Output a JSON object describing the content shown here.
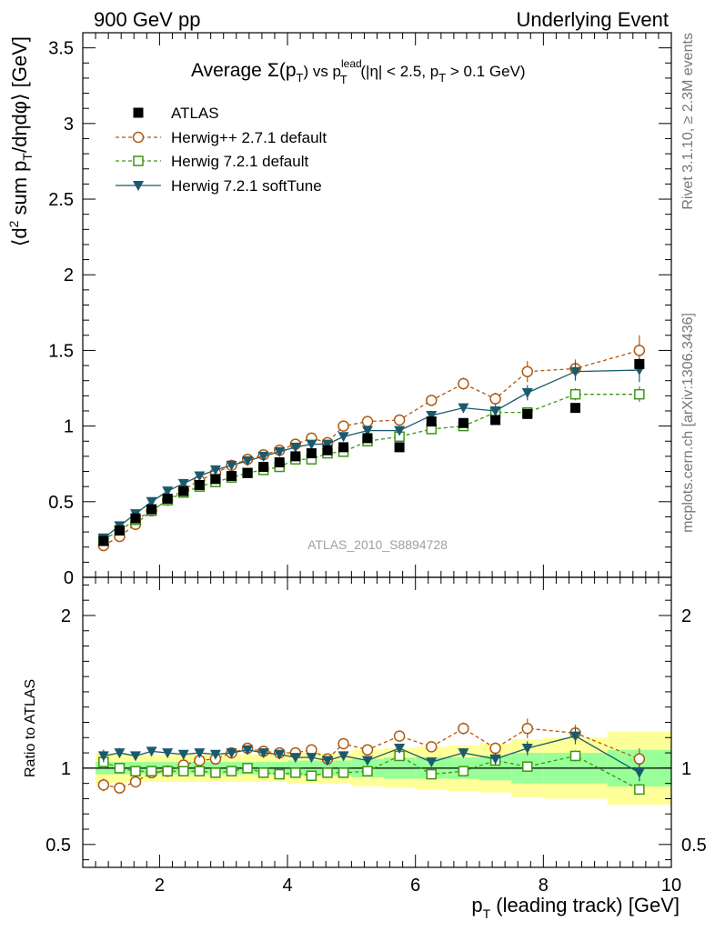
{
  "header": {
    "left": "900 GeV pp",
    "right": "Underlying Event"
  },
  "side_labels": {
    "rivet": "Rivet 3.1.10, ≥ 2.3M events",
    "mcplots": "mcplots.cern.ch [arXiv:1306.3436]"
  },
  "plot": {
    "title_prefix": "Average",
    "title_sigma": "Σ(p",
    "title_sub_T": "T",
    "title_mid": ") vs p",
    "title_sup": "lead",
    "title_sub2": "T",
    "title_cuts1": " (|η| < 2.5, p",
    "title_sub3": "T",
    "title_cuts2": " > 0.1 GeV)",
    "watermark": "ATLAS_2010_S8894728",
    "ylabel_a": "⟨d",
    "ylabel_b": "2",
    "ylabel_c": " sum p",
    "ylabel_d": "T",
    "ylabel_e": "/dηdφ⟩ [GeV]",
    "ratio_ylabel": "Ratio to ATLAS",
    "xlabel_a": "p",
    "xlabel_b": "T",
    "xlabel_c": " (leading track) [GeV]"
  },
  "colors": {
    "atlas": "#000000",
    "herwigpp": "#b05a10",
    "herwig721": "#3c9614",
    "softtune": "#1a5a6e",
    "band_inner": "#99ff99",
    "band_outer": "#ffff99"
  },
  "chart_data": {
    "type": "scatter",
    "xlim": [
      0.8,
      10
    ],
    "ylim": [
      0,
      3.6
    ],
    "ratio_ylim": [
      0.35,
      2.25
    ],
    "xticks": [
      "2",
      "4",
      "6",
      "8",
      "10"
    ],
    "yticks": [
      "0",
      "0.5",
      "1",
      "1.5",
      "2",
      "2.5",
      "3",
      "3.5"
    ],
    "ratio_yticks": [
      "0.5",
      "1",
      "2"
    ],
    "legend": [
      "ATLAS",
      "Herwig++ 2.7.1 default",
      "Herwig 7.2.1 default",
      "Herwig 7.2.1 softTune"
    ],
    "x": [
      1.125,
      1.375,
      1.625,
      1.875,
      2.125,
      2.375,
      2.625,
      2.875,
      3.125,
      3.375,
      3.625,
      3.875,
      4.125,
      4.375,
      4.625,
      4.875,
      5.25,
      5.75,
      6.25,
      6.75,
      7.25,
      7.75,
      8.5,
      9.5
    ],
    "bin_edges": [
      1.0,
      1.25,
      1.5,
      1.75,
      2.0,
      2.25,
      2.5,
      2.75,
      3.0,
      3.25,
      3.5,
      3.75,
      4.0,
      4.25,
      4.5,
      4.75,
      5.0,
      5.5,
      6.0,
      6.5,
      7.0,
      7.5,
      8.0,
      9.0,
      10.0
    ],
    "series": [
      {
        "name": "ATLAS",
        "values": [
          0.24,
          0.31,
          0.39,
          0.45,
          0.52,
          0.57,
          0.61,
          0.65,
          0.67,
          0.69,
          0.73,
          0.76,
          0.8,
          0.82,
          0.84,
          0.86,
          0.92,
          0.86,
          1.03,
          1.02,
          1.04,
          1.08,
          1.12,
          1.41
        ]
      },
      {
        "name": "Herwig++ 2.7.1 default",
        "values": [
          0.21,
          0.27,
          0.35,
          0.44,
          0.51,
          0.58,
          0.64,
          0.69,
          0.74,
          0.78,
          0.81,
          0.84,
          0.88,
          0.92,
          0.89,
          1.0,
          1.03,
          1.04,
          1.17,
          1.28,
          1.18,
          1.36,
          1.38,
          1.5
        ]
      },
      {
        "name": "Herwig 7.2.1 default",
        "values": [
          0.25,
          0.31,
          0.38,
          0.44,
          0.51,
          0.56,
          0.6,
          0.63,
          0.66,
          0.69,
          0.71,
          0.73,
          0.78,
          0.78,
          0.82,
          0.83,
          0.9,
          0.93,
          0.98,
          1.0,
          1.09,
          1.09,
          1.21,
          1.21
        ]
      },
      {
        "name": "Herwig 7.2.1 softTune",
        "values": [
          0.26,
          0.34,
          0.42,
          0.5,
          0.57,
          0.62,
          0.67,
          0.71,
          0.74,
          0.77,
          0.8,
          0.83,
          0.86,
          0.88,
          0.88,
          0.93,
          0.97,
          0.97,
          1.07,
          1.12,
          1.1,
          1.22,
          1.36,
          1.37
        ]
      }
    ],
    "ratio_series": [
      {
        "name": "Herwig++ 2.7.1 default",
        "values": [
          0.89,
          0.87,
          0.91,
          0.97,
          0.98,
          1.02,
          1.05,
          1.06,
          1.1,
          1.13,
          1.11,
          1.1,
          1.1,
          1.12,
          1.06,
          1.16,
          1.12,
          1.21,
          1.14,
          1.26,
          1.13,
          1.26,
          1.23,
          1.06
        ]
      },
      {
        "name": "Herwig 7.2.1 default",
        "values": [
          1.04,
          1.0,
          0.98,
          0.98,
          0.98,
          0.98,
          0.98,
          0.97,
          0.98,
          1.0,
          0.97,
          0.96,
          0.97,
          0.95,
          0.97,
          0.97,
          0.98,
          1.08,
          0.96,
          0.98,
          1.05,
          1.01,
          1.08,
          0.86
        ]
      },
      {
        "name": "Herwig 7.2.1 softTune",
        "values": [
          1.08,
          1.1,
          1.08,
          1.11,
          1.1,
          1.09,
          1.1,
          1.09,
          1.1,
          1.12,
          1.1,
          1.09,
          1.07,
          1.07,
          1.05,
          1.08,
          1.05,
          1.13,
          1.04,
          1.1,
          1.06,
          1.13,
          1.21,
          0.97
        ]
      }
    ],
    "band_inner": [
      0.04,
      0.04,
      0.04,
      0.04,
      0.04,
      0.04,
      0.04,
      0.04,
      0.04,
      0.04,
      0.04,
      0.04,
      0.05,
      0.05,
      0.05,
      0.05,
      0.06,
      0.07,
      0.07,
      0.07,
      0.08,
      0.1,
      0.1,
      0.12
    ],
    "band_outer": [
      0.1,
      0.1,
      0.09,
      0.09,
      0.09,
      0.09,
      0.09,
      0.09,
      0.09,
      0.09,
      0.09,
      0.09,
      0.1,
      0.1,
      0.1,
      0.1,
      0.12,
      0.13,
      0.14,
      0.15,
      0.16,
      0.19,
      0.2,
      0.24
    ],
    "err_herwigpp": [
      0.01,
      0.01,
      0.01,
      0.01,
      0.01,
      0.01,
      0.01,
      0.01,
      0.01,
      0.01,
      0.01,
      0.01,
      0.01,
      0.01,
      0.02,
      0.02,
      0.02,
      0.02,
      0.02,
      0.04,
      0.04,
      0.07,
      0.06,
      0.1
    ],
    "err_herwig721": [
      0.01,
      0.01,
      0.01,
      0.01,
      0.01,
      0.01,
      0.01,
      0.01,
      0.01,
      0.01,
      0.01,
      0.01,
      0.01,
      0.01,
      0.01,
      0.02,
      0.02,
      0.02,
      0.02,
      0.02,
      0.03,
      0.03,
      0.04,
      0.05
    ],
    "err_softtune": [
      0.01,
      0.01,
      0.01,
      0.01,
      0.01,
      0.01,
      0.01,
      0.01,
      0.01,
      0.01,
      0.01,
      0.01,
      0.01,
      0.01,
      0.01,
      0.02,
      0.02,
      0.02,
      0.02,
      0.03,
      0.04,
      0.05,
      0.06,
      0.08
    ]
  }
}
